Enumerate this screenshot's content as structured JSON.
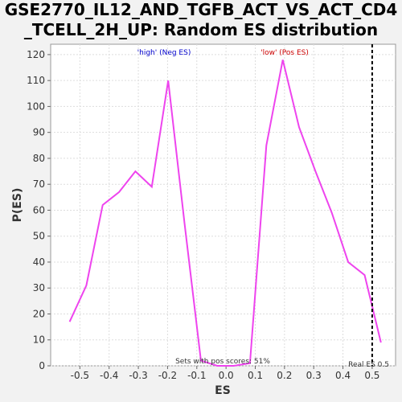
{
  "title_line1": "GSE2770_IL12_AND_TGFB_ACT_VS_ACT_CD4",
  "title_line2": "_TCELL_2H_UP: Random ES distribution",
  "chart_data": {
    "type": "line",
    "xlabel": "ES",
    "ylabel": "P(ES)",
    "xlim": [
      -0.6,
      0.58
    ],
    "ylim": [
      0,
      124
    ],
    "grid": true,
    "x_ticks": [
      -0.5,
      -0.4,
      -0.3,
      -0.2,
      -0.1,
      0.0,
      0.1,
      0.2,
      0.3,
      0.4,
      0.5
    ],
    "x_tick_labels": [
      "-0.5",
      "-0.4",
      "-0.3",
      "-0.2",
      "-0.1",
      "0.0",
      "0.1",
      "0.2",
      "0.3",
      "0.4",
      "0.5"
    ],
    "y_ticks": [
      0,
      10,
      20,
      30,
      40,
      50,
      60,
      70,
      80,
      90,
      100,
      110,
      120
    ],
    "series": [
      {
        "color": "#ee44ee",
        "x": [
          -0.535,
          -0.478,
          -0.422,
          -0.366,
          -0.31,
          -0.254,
          -0.198,
          -0.142,
          -0.086,
          -0.03,
          0.026,
          0.082,
          0.138,
          0.194,
          0.25,
          0.306,
          0.362,
          0.418,
          0.474,
          0.53
        ],
        "y": [
          17,
          31,
          62,
          67,
          75,
          69,
          110,
          55,
          2,
          0,
          0,
          1,
          85,
          118,
          92,
          75,
          59,
          40,
          35,
          9
        ]
      }
    ],
    "real_es": 0.5,
    "annotations": {
      "neg_label": "'high' (Neg ES)",
      "pos_label": "'low' (Pos ES)",
      "pos_scores": "Sets with pos scores: 51%",
      "real_es_label": "Real ES 0.5"
    },
    "colors": {
      "neg": "#0000cc",
      "pos": "#cc0000",
      "line": "#ee44ee"
    }
  }
}
